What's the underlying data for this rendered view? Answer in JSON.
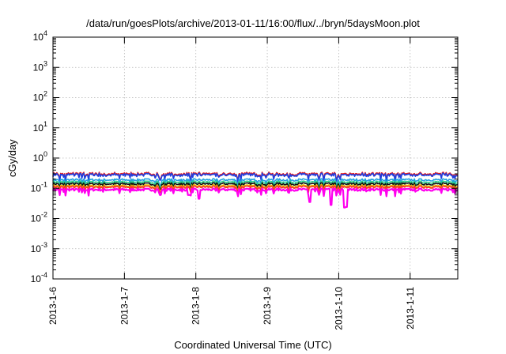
{
  "chart_data": {
    "type": "line",
    "title": "/data/run/goesPlots/archive/2013-01-11/16:00/flux/../bryn/5daysMoon.plot",
    "xlabel": "Coordinated Universal Time (UTC)",
    "ylabel": "cGy/day",
    "x_tick_labels": [
      "2013-1-6",
      "2013-1-7",
      "2013-1-8",
      "2013-1-9",
      "2013-1-10",
      "2013-1-11"
    ],
    "x_ticks": [
      "2013-01-06 00:00",
      "2013-01-07 00:00",
      "2013-01-08 00:00",
      "2013-01-09 00:00",
      "2013-01-10 00:00",
      "2013-01-11 00:00"
    ],
    "xlim": [
      "2013-01-06 00:00",
      "2013-01-11 16:00"
    ],
    "y_scale": "log",
    "ylim": [
      0.0001,
      10000
    ],
    "y_tick_labels": [
      {
        "base": "10",
        "exp": "4"
      },
      {
        "base": "10",
        "exp": "3"
      },
      {
        "base": "10",
        "exp": "2"
      },
      {
        "base": "10",
        "exp": "1"
      },
      {
        "base": "10",
        "exp": "0"
      },
      {
        "base": "10",
        "exp": "-1"
      },
      {
        "base": "10",
        "exp": "-2"
      },
      {
        "base": "10",
        "exp": "-3"
      },
      {
        "base": "10",
        "exp": "-4"
      }
    ],
    "grid": true,
    "legend": "none",
    "series": [
      {
        "color": "#e41a1c",
        "level": 0.3
      },
      {
        "color": "#1f3fe0",
        "level": 0.28
      },
      {
        "color": "#1fa0e0",
        "level": 0.19
      },
      {
        "color": "#2bd08a",
        "level": 0.16
      },
      {
        "color": "#111111",
        "level": 0.14
      },
      {
        "color": "#e6c000",
        "level": 0.12
      },
      {
        "color": "#ff3030",
        "level": 0.11
      },
      {
        "color": "#ff00ee",
        "level": 0.09,
        "dips": [
          {
            "x": "2013-01-07 21:40",
            "y": 0.06
          },
          {
            "x": "2013-01-08 01:00",
            "y": 0.045
          },
          {
            "x": "2013-01-09 14:20",
            "y": 0.035
          },
          {
            "x": "2013-01-09 21:30",
            "y": 0.028
          },
          {
            "x": "2013-01-10 02:00",
            "y": 0.023
          },
          {
            "x": "2013-01-10 02:40",
            "y": 0.024
          }
        ]
      }
    ]
  }
}
